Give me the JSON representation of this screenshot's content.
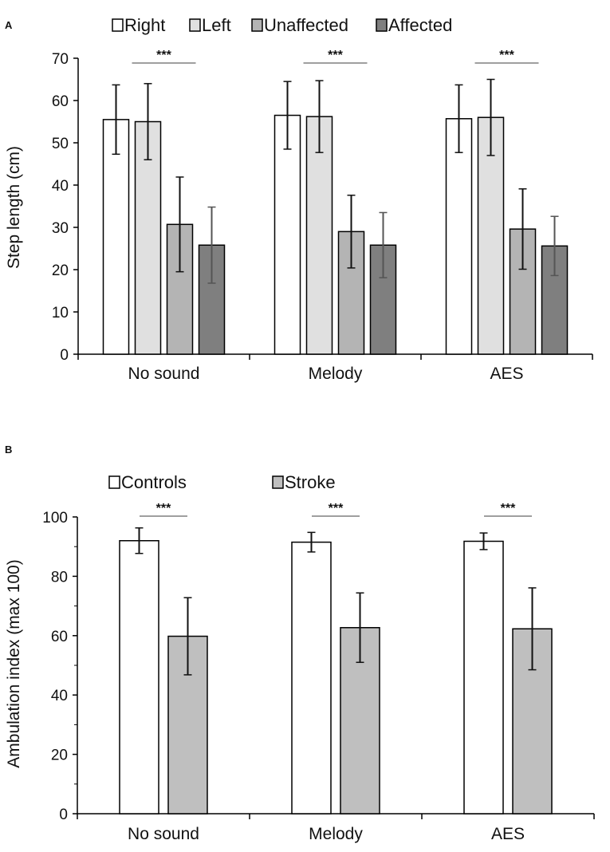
{
  "chart_data": [
    {
      "panel": "A",
      "type": "bar",
      "ylabel": "Step length (cm)",
      "xlabel": "",
      "ylim": [
        0,
        70
      ],
      "yticks": [
        0,
        10,
        20,
        30,
        40,
        50,
        60,
        70
      ],
      "categories": [
        "No sound",
        "Melody",
        "AES"
      ],
      "legend_position": "top",
      "significance": [
        "***",
        "***",
        "***"
      ],
      "series": [
        {
          "name": "Right",
          "color": "#ffffff",
          "values": [
            55.5,
            56.5,
            55.7
          ],
          "errors": [
            8.2,
            8.0,
            8.0
          ]
        },
        {
          "name": "Left",
          "color": "#e0e0e0",
          "values": [
            55.0,
            56.2,
            56.0
          ],
          "errors": [
            9.0,
            8.5,
            9.0
          ]
        },
        {
          "name": "Unaffected",
          "color": "#b4b4b4",
          "values": [
            30.7,
            29.0,
            29.6
          ],
          "errors": [
            11.2,
            8.6,
            9.5
          ]
        },
        {
          "name": "Affected",
          "color": "#7f7f7f",
          "values": [
            25.8,
            25.8,
            25.6
          ],
          "errors": [
            9.0,
            7.7,
            7.0
          ]
        }
      ]
    },
    {
      "panel": "B",
      "type": "bar",
      "ylabel": "Ambulation index (max 100)",
      "xlabel": "",
      "ylim": [
        0,
        100
      ],
      "yticks": [
        0,
        20,
        40,
        60,
        80,
        100
      ],
      "categories": [
        "No sound",
        "Melody",
        "AES"
      ],
      "legend_position": "top",
      "significance": [
        "***",
        "***",
        "***"
      ],
      "series": [
        {
          "name": "Controls",
          "color": "#ffffff",
          "values": [
            92.0,
            91.5,
            91.8
          ],
          "errors": [
            4.3,
            3.3,
            2.8
          ]
        },
        {
          "name": "Stroke",
          "color": "#bfbfbf",
          "values": [
            59.8,
            62.7,
            62.3
          ],
          "errors": [
            13.0,
            11.7,
            13.8
          ]
        }
      ]
    }
  ]
}
